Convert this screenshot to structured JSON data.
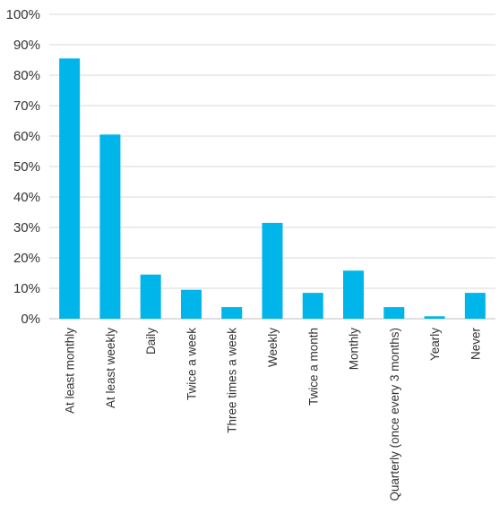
{
  "chart_data": {
    "type": "bar",
    "title": "",
    "xlabel": "",
    "ylabel": "",
    "categories": [
      "At least monthly",
      "At least weekly",
      "Daily",
      "Twice a week",
      "Three times a week",
      "Weekly",
      "Twice a month",
      "Monthly",
      "Quarterly (once every 3 months)",
      "Yearly",
      "Never"
    ],
    "values": [
      85.5,
      60.5,
      14.5,
      9.5,
      3.8,
      31.5,
      8.5,
      15.8,
      3.8,
      0.8,
      8.5
    ],
    "ylim": [
      0,
      100
    ],
    "yticks": [
      "0%",
      "10%",
      "20%",
      "30%",
      "40%",
      "50%",
      "60%",
      "70%",
      "80%",
      "90%",
      "100%"
    ],
    "grid": true,
    "legend": "none",
    "bar_color": "#00b5e9"
  }
}
